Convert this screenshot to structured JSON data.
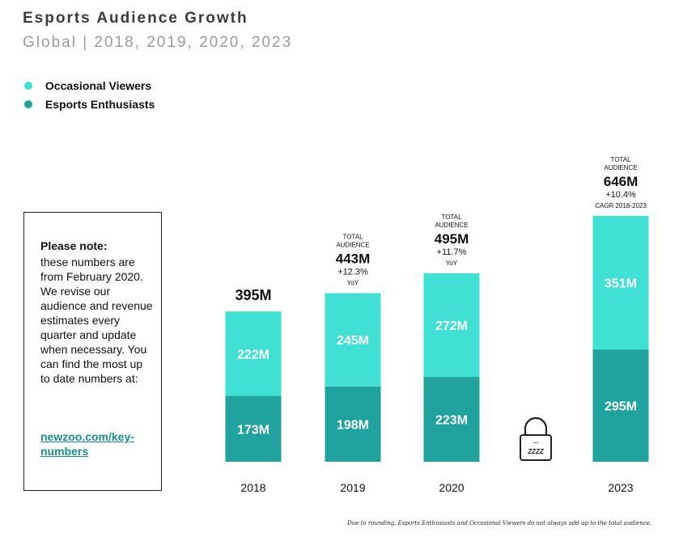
{
  "chart_data": {
    "type": "bar",
    "stacked": true,
    "title": "Esports Audience Growth",
    "subtitle": "Global | 2018, 2019, 2020, 2023",
    "categories": [
      "2018",
      "2019",
      "2020",
      "2023"
    ],
    "series": [
      {
        "name": "Esports Enthusiasts",
        "color": "#20a39e",
        "values": [
          173,
          198,
          223,
          295
        ],
        "labels": [
          "173M",
          "198M",
          "223M",
          "295M"
        ]
      },
      {
        "name": "Occasional Viewers",
        "color": "#40e0d5",
        "values": [
          222,
          245,
          272,
          351
        ],
        "labels": [
          "222M",
          "245M",
          "272M",
          "351M"
        ]
      }
    ],
    "totals": [
      395,
      443,
      495,
      646
    ],
    "annotations": [
      {
        "category": "2018",
        "heading": "",
        "total": "395M",
        "growth": "",
        "growth_note": ""
      },
      {
        "category": "2019",
        "heading": "TOTAL\nAUDIENCE",
        "total": "443M",
        "growth": "+12.3%",
        "growth_note": "YoY"
      },
      {
        "category": "2020",
        "heading": "TOTAL\nAUDIENCE",
        "total": "495M",
        "growth": "+11.7%",
        "growth_note": "YoY"
      },
      {
        "category": "2023",
        "heading": "TOTAL\nAUDIENCE",
        "total": "646M",
        "growth": "+10.4%",
        "growth_note": "CAGR 2018-2023"
      }
    ],
    "lock_icon_text": "ZZZZ",
    "legend_position": "top-left",
    "grid": false
  },
  "note": {
    "heading": "Please note:",
    "body": "these numbers are from February 2020. We revise our audience and revenue estimates every quarter and update when necessary. You can find the most up to date numbers at:",
    "link": "newzoo.com/key-numbers"
  },
  "footnote": "Due to rounding, Esports Enthusiasts and Occasional Viewers do not always add up to the total audience.",
  "icons": {
    "lock": "padlock-icon"
  }
}
